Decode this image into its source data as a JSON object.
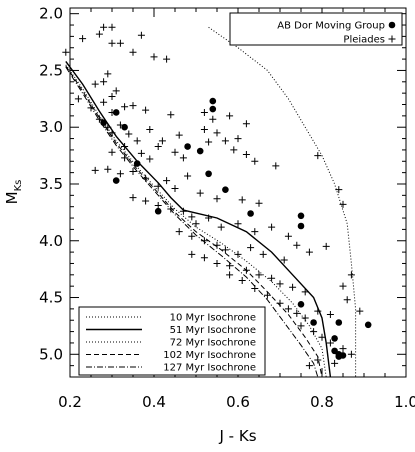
{
  "chart_data": {
    "type": "scatter",
    "title": "",
    "xlabel": "J - Ks",
    "ylabel_main": "M",
    "ylabel_sub": "Ks",
    "xlim": [
      0.2,
      1.0
    ],
    "ylim": [
      5.2,
      1.95
    ],
    "y_inverted": true,
    "xticks": [
      "0.2",
      "0.4",
      "0.6",
      "0.8",
      "1.0"
    ],
    "yticks": [
      "2.0",
      "2.5",
      "3.0",
      "3.5",
      "4.0",
      "4.5",
      "5.0"
    ],
    "xtick_values": [
      0.2,
      0.4,
      0.6,
      0.8,
      1.0
    ],
    "ytick_values": [
      2.0,
      2.5,
      3.0,
      3.5,
      4.0,
      4.5,
      5.0
    ],
    "grid": false,
    "scatter_legend_position": "top-right",
    "isochrone_legend_position": "bottom-left",
    "scatter_series": [
      {
        "name": "AB Dor Moving Group",
        "marker": "filled-circle",
        "points": [
          [
            0.54,
            2.77
          ],
          [
            0.54,
            2.84
          ],
          [
            0.31,
            2.87
          ],
          [
            0.28,
            2.96
          ],
          [
            0.33,
            3.0
          ],
          [
            0.48,
            3.17
          ],
          [
            0.51,
            3.21
          ],
          [
            0.36,
            3.32
          ],
          [
            0.53,
            3.41
          ],
          [
            0.31,
            3.47
          ],
          [
            0.57,
            3.55
          ],
          [
            0.41,
            3.74
          ],
          [
            0.63,
            3.76
          ],
          [
            0.75,
            3.78
          ],
          [
            0.75,
            3.87
          ],
          [
            0.75,
            4.56
          ],
          [
            0.78,
            4.72
          ],
          [
            0.84,
            4.72
          ],
          [
            0.91,
            4.74
          ],
          [
            0.83,
            4.86
          ],
          [
            0.83,
            4.97
          ],
          [
            0.84,
            5.0
          ],
          [
            0.85,
            5.01
          ],
          [
            0.84,
            5.02
          ]
        ]
      },
      {
        "name": "Pleiades",
        "marker": "plus",
        "points": [
          [
            0.19,
            2.34
          ],
          [
            0.28,
            2.12
          ],
          [
            0.3,
            2.12
          ],
          [
            0.27,
            2.18
          ],
          [
            0.23,
            2.22
          ],
          [
            0.3,
            2.26
          ],
          [
            0.37,
            2.19
          ],
          [
            0.32,
            2.26
          ],
          [
            0.35,
            2.34
          ],
          [
            0.4,
            2.38
          ],
          [
            0.43,
            2.4
          ],
          [
            0.29,
            2.53
          ],
          [
            0.26,
            2.62
          ],
          [
            0.28,
            2.6
          ],
          [
            0.31,
            2.68
          ],
          [
            0.3,
            2.73
          ],
          [
            0.22,
            2.75
          ],
          [
            0.25,
            2.83
          ],
          [
            0.28,
            2.78
          ],
          [
            0.3,
            2.87
          ],
          [
            0.33,
            2.82
          ],
          [
            0.35,
            2.81
          ],
          [
            0.38,
            2.85
          ],
          [
            0.44,
            2.89
          ],
          [
            0.52,
            2.87
          ],
          [
            0.58,
            2.9
          ],
          [
            0.54,
            2.93
          ],
          [
            0.62,
            2.97
          ],
          [
            0.27,
            2.93
          ],
          [
            0.29,
            3.0
          ],
          [
            0.3,
            3.05
          ],
          [
            0.32,
            2.98
          ],
          [
            0.34,
            3.06
          ],
          [
            0.39,
            3.02
          ],
          [
            0.42,
            3.12
          ],
          [
            0.46,
            3.07
          ],
          [
            0.52,
            3.02
          ],
          [
            0.55,
            3.05
          ],
          [
            0.6,
            3.1
          ],
          [
            0.33,
            3.17
          ],
          [
            0.36,
            3.12
          ],
          [
            0.3,
            3.22
          ],
          [
            0.33,
            3.27
          ],
          [
            0.37,
            3.23
          ],
          [
            0.39,
            3.28
          ],
          [
            0.41,
            3.17
          ],
          [
            0.45,
            3.22
          ],
          [
            0.47,
            3.27
          ],
          [
            0.53,
            3.13
          ],
          [
            0.57,
            3.12
          ],
          [
            0.59,
            3.2
          ],
          [
            0.62,
            3.24
          ],
          [
            0.64,
            3.3
          ],
          [
            0.69,
            3.34
          ],
          [
            0.79,
            3.25
          ],
          [
            0.26,
            3.38
          ],
          [
            0.29,
            3.37
          ],
          [
            0.32,
            3.41
          ],
          [
            0.35,
            3.39
          ],
          [
            0.38,
            3.45
          ],
          [
            0.41,
            3.52
          ],
          [
            0.43,
            3.47
          ],
          [
            0.45,
            3.54
          ],
          [
            0.48,
            3.43
          ],
          [
            0.51,
            3.58
          ],
          [
            0.55,
            3.63
          ],
          [
            0.61,
            3.64
          ],
          [
            0.65,
            3.67
          ],
          [
            0.35,
            3.62
          ],
          [
            0.38,
            3.65
          ],
          [
            0.41,
            3.69
          ],
          [
            0.44,
            3.72
          ],
          [
            0.47,
            3.74
          ],
          [
            0.49,
            3.79
          ],
          [
            0.5,
            3.85
          ],
          [
            0.53,
            3.8
          ],
          [
            0.56,
            3.88
          ],
          [
            0.6,
            3.85
          ],
          [
            0.64,
            3.92
          ],
          [
            0.68,
            3.88
          ],
          [
            0.84,
            3.55
          ],
          [
            0.85,
            3.68
          ],
          [
            0.72,
            3.96
          ],
          [
            0.46,
            3.92
          ],
          [
            0.49,
            3.96
          ],
          [
            0.52,
            4.0
          ],
          [
            0.55,
            4.04
          ],
          [
            0.57,
            4.08
          ],
          [
            0.6,
            4.12
          ],
          [
            0.63,
            4.06
          ],
          [
            0.66,
            4.12
          ],
          [
            0.71,
            4.17
          ],
          [
            0.74,
            4.04
          ],
          [
            0.77,
            4.1
          ],
          [
            0.81,
            4.05
          ],
          [
            0.49,
            4.12
          ],
          [
            0.52,
            4.15
          ],
          [
            0.55,
            4.2
          ],
          [
            0.58,
            4.22
          ],
          [
            0.62,
            4.26
          ],
          [
            0.65,
            4.3
          ],
          [
            0.68,
            4.33
          ],
          [
            0.7,
            4.38
          ],
          [
            0.73,
            4.41
          ],
          [
            0.76,
            4.45
          ],
          [
            0.58,
            4.3
          ],
          [
            0.61,
            4.35
          ],
          [
            0.64,
            4.42
          ],
          [
            0.67,
            4.48
          ],
          [
            0.7,
            4.55
          ],
          [
            0.72,
            4.6
          ],
          [
            0.74,
            4.64
          ],
          [
            0.76,
            4.68
          ],
          [
            0.79,
            4.62
          ],
          [
            0.82,
            4.65
          ],
          [
            0.86,
            4.52
          ],
          [
            0.89,
            4.62
          ],
          [
            0.85,
            4.4
          ],
          [
            0.87,
            4.3
          ],
          [
            0.75,
            4.75
          ],
          [
            0.78,
            4.8
          ],
          [
            0.8,
            4.85
          ],
          [
            0.82,
            4.9
          ],
          [
            0.85,
            4.95
          ],
          [
            0.87,
            5.0
          ],
          [
            0.79,
            5.05
          ],
          [
            0.83,
            5.08
          ],
          [
            0.77,
            5.1
          ]
        ]
      }
    ],
    "isochrones": [
      {
        "name": "10 Myr Isochrone",
        "style": "dotted",
        "x": [
          0.53,
          0.6,
          0.67,
          0.72,
          0.76,
          0.8,
          0.83,
          0.86,
          0.87,
          0.88,
          0.88
        ],
        "y": [
          2.12,
          2.3,
          2.5,
          2.75,
          3.0,
          3.25,
          3.5,
          3.85,
          4.2,
          4.6,
          5.2
        ]
      },
      {
        "name": "51 Myr Isochrone",
        "style": "solid",
        "x": [
          0.19,
          0.23,
          0.27,
          0.31,
          0.36,
          0.41,
          0.44,
          0.47,
          0.55,
          0.62,
          0.68,
          0.73,
          0.78,
          0.8,
          0.81,
          0.82
        ],
        "y": [
          2.42,
          2.62,
          2.86,
          3.08,
          3.3,
          3.49,
          3.62,
          3.73,
          3.8,
          3.92,
          4.1,
          4.3,
          4.5,
          4.68,
          4.9,
          5.2
        ]
      },
      {
        "name": "72 Myr Isochrone",
        "style": "dotted",
        "x": [
          0.19,
          0.23,
          0.27,
          0.31,
          0.36,
          0.41,
          0.45,
          0.5,
          0.56,
          0.62,
          0.68,
          0.73,
          0.77,
          0.8,
          0.81
        ],
        "y": [
          2.45,
          2.66,
          2.9,
          3.12,
          3.35,
          3.56,
          3.72,
          3.88,
          4.02,
          4.18,
          4.36,
          4.55,
          4.75,
          4.95,
          5.2
        ]
      },
      {
        "name": "102 Myr Isochrone",
        "style": "dashed",
        "x": [
          0.19,
          0.23,
          0.27,
          0.31,
          0.36,
          0.41,
          0.45,
          0.5,
          0.56,
          0.62,
          0.67,
          0.72,
          0.76,
          0.79,
          0.8
        ],
        "y": [
          2.46,
          2.68,
          2.92,
          3.14,
          3.37,
          3.58,
          3.75,
          3.92,
          4.08,
          4.26,
          4.45,
          4.65,
          4.85,
          5.02,
          5.2
        ]
      },
      {
        "name": "127 Myr Isochrone",
        "style": "dash-dot",
        "x": [
          0.19,
          0.23,
          0.27,
          0.31,
          0.36,
          0.41,
          0.45,
          0.5,
          0.56,
          0.62,
          0.67,
          0.71,
          0.75,
          0.78,
          0.79
        ],
        "y": [
          2.47,
          2.7,
          2.94,
          3.16,
          3.39,
          3.6,
          3.77,
          3.95,
          4.13,
          4.32,
          4.52,
          4.72,
          4.92,
          5.08,
          5.2
        ]
      }
    ]
  }
}
